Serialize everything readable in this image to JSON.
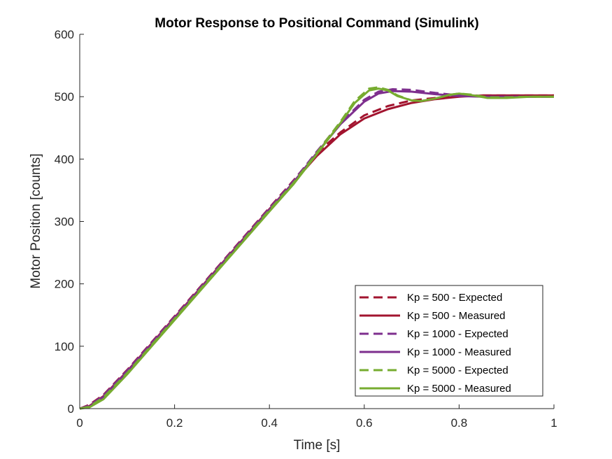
{
  "chart_data": {
    "type": "line",
    "title": "Motor Response to Positional Command (Simulink)",
    "xlabel": "Time [s]",
    "ylabel": "Motor Position [counts]",
    "xlim": [
      0,
      1
    ],
    "ylim": [
      0,
      600
    ],
    "xticks": [
      "0",
      "0.2",
      "0.4",
      "0.6",
      "0.8",
      "1"
    ],
    "yticks": [
      "0",
      "100",
      "200",
      "300",
      "400",
      "500",
      "600"
    ],
    "grid": false,
    "legend_position": "bottom-right",
    "series": [
      {
        "name": "Kp = 500 - Expected",
        "color": "#A2142F",
        "dash": true,
        "x": [
          0,
          0.02,
          0.05,
          0.1,
          0.2,
          0.3,
          0.4,
          0.45,
          0.5,
          0.55,
          0.6,
          0.65,
          0.7,
          0.75,
          0.8,
          0.85,
          0.9,
          1.0
        ],
        "y": [
          0,
          6,
          22,
          62,
          148,
          235,
          322,
          365,
          410,
          443,
          470,
          485,
          494,
          498,
          501,
          502,
          502,
          502
        ]
      },
      {
        "name": "Kp = 500 - Measured",
        "color": "#A2142F",
        "dash": false,
        "x": [
          0,
          0.02,
          0.05,
          0.1,
          0.2,
          0.3,
          0.4,
          0.45,
          0.5,
          0.55,
          0.6,
          0.65,
          0.7,
          0.75,
          0.8,
          0.85,
          0.9,
          1.0
        ],
        "y": [
          0,
          4,
          20,
          60,
          146,
          233,
          320,
          362,
          405,
          440,
          465,
          480,
          490,
          496,
          500,
          502,
          502,
          502
        ]
      },
      {
        "name": "Kp = 1000 - Expected",
        "color": "#7E2F8E",
        "dash": true,
        "x": [
          0,
          0.02,
          0.05,
          0.1,
          0.2,
          0.3,
          0.4,
          0.45,
          0.5,
          0.55,
          0.6,
          0.63,
          0.66,
          0.7,
          0.75,
          0.8,
          0.85,
          0.9,
          1.0
        ],
        "y": [
          0,
          5,
          21,
          61,
          147,
          234,
          321,
          364,
          412,
          458,
          495,
          508,
          512,
          511,
          506,
          502,
          500,
          500,
          500
        ]
      },
      {
        "name": "Kp = 1000 - Measured",
        "color": "#7E2F8E",
        "dash": false,
        "x": [
          0,
          0.02,
          0.05,
          0.1,
          0.2,
          0.3,
          0.4,
          0.45,
          0.5,
          0.55,
          0.6,
          0.63,
          0.66,
          0.7,
          0.75,
          0.8,
          0.85,
          0.9,
          1.0
        ],
        "y": [
          0,
          3,
          19,
          59,
          145,
          232,
          319,
          362,
          410,
          456,
          492,
          505,
          509,
          508,
          504,
          501,
          500,
          500,
          500
        ]
      },
      {
        "name": "Kp = 5000 - Expected",
        "color": "#77AC30",
        "dash": true,
        "x": [
          0,
          0.02,
          0.05,
          0.1,
          0.2,
          0.3,
          0.4,
          0.45,
          0.5,
          0.55,
          0.58,
          0.61,
          0.63,
          0.65,
          0.67,
          0.7,
          0.72,
          0.75,
          0.78,
          0.8,
          0.83,
          0.86,
          0.9,
          0.95,
          1.0
        ],
        "y": [
          0,
          3,
          18,
          57,
          144,
          231,
          318,
          361,
          410,
          460,
          493,
          513,
          515,
          511,
          502,
          494,
          493,
          497,
          503,
          505,
          503,
          499,
          499,
          500,
          500
        ]
      },
      {
        "name": "Kp = 5000 - Measured",
        "color": "#77AC30",
        "dash": false,
        "x": [
          0,
          0.02,
          0.05,
          0.1,
          0.2,
          0.3,
          0.4,
          0.45,
          0.5,
          0.55,
          0.58,
          0.61,
          0.63,
          0.65,
          0.67,
          0.7,
          0.72,
          0.75,
          0.78,
          0.8,
          0.83,
          0.86,
          0.9,
          0.95,
          1.0
        ],
        "y": [
          0,
          2,
          15,
          55,
          142,
          229,
          316,
          359,
          408,
          458,
          490,
          510,
          513,
          510,
          501,
          494,
          493,
          497,
          503,
          505,
          502,
          498,
          498,
          500,
          500
        ]
      }
    ]
  }
}
